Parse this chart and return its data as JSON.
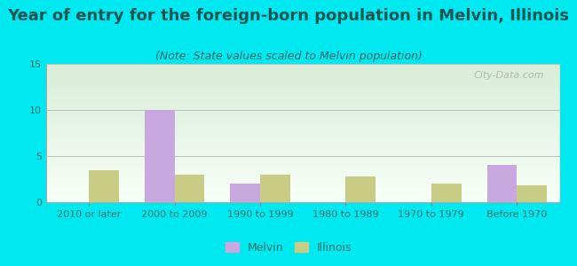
{
  "title": "Year of entry for the foreign-born population in Melvin, Illinois",
  "subtitle": "(Note: State values scaled to Melvin population)",
  "categories": [
    "2010 or later",
    "2000 to 2009",
    "1990 to 1999",
    "1980 to 1989",
    "1970 to 1979",
    "Before 1970"
  ],
  "melvin_values": [
    0,
    10,
    2,
    0,
    0,
    4
  ],
  "illinois_values": [
    3.5,
    3.0,
    3.0,
    2.8,
    2.0,
    1.8
  ],
  "melvin_color": "#c9a8e0",
  "illinois_color": "#c8cc84",
  "background_color": "#00e8f0",
  "plot_bg_top": "#f8fff8",
  "plot_bg_bottom": "#d8edd8",
  "ylim": [
    0,
    15
  ],
  "yticks": [
    0,
    5,
    10,
    15
  ],
  "bar_width": 0.35,
  "title_fontsize": 13,
  "subtitle_fontsize": 9,
  "tick_fontsize": 8,
  "legend_fontsize": 9,
  "watermark_text": "City-Data.com"
}
